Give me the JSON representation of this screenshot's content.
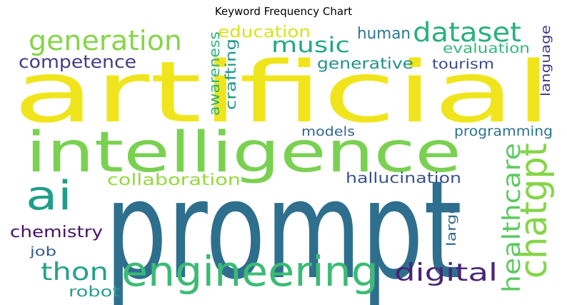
{
  "chart_data": {
    "type": "wordcloud",
    "title": "Keyword Frequency Chart",
    "colormap": "viridis",
    "background": "#ffffff",
    "words": [
      {
        "text": "prompt",
        "color": "#2e6f8e"
      },
      {
        "text": "artificial",
        "color": "#f0e51c"
      },
      {
        "text": "intelligence",
        "color": "#7ad151"
      },
      {
        "text": "engineering",
        "color": "#3bbb75"
      },
      {
        "text": "chatgpt",
        "color": "#86d549"
      },
      {
        "text": "ai",
        "color": "#1f9e89"
      },
      {
        "text": "generation",
        "color": "#86d549"
      },
      {
        "text": "dataset",
        "color": "#2ab07f"
      },
      {
        "text": "music",
        "color": "#22a884"
      },
      {
        "text": "digital",
        "color": "#482576"
      },
      {
        "text": "thon",
        "color": "#25a18e"
      },
      {
        "text": "healthcare",
        "color": "#5ec962"
      },
      {
        "text": "competence",
        "color": "#433e85"
      },
      {
        "text": "education",
        "color": "#d8e219"
      },
      {
        "text": "human",
        "color": "#2a788e"
      },
      {
        "text": "evaluation",
        "color": "#35b779"
      },
      {
        "text": "generative",
        "color": "#21918c"
      },
      {
        "text": "tourism",
        "color": "#3e4989"
      },
      {
        "text": "language",
        "color": "#443a83"
      },
      {
        "text": "awareness",
        "color": "#2db27d"
      },
      {
        "text": "crafting",
        "color": "#1f988b"
      },
      {
        "text": "collaboration",
        "color": "#95d840"
      },
      {
        "text": "hallucination",
        "color": "#3b528b"
      },
      {
        "text": "programming",
        "color": "#2c728e"
      },
      {
        "text": "models",
        "color": "#31688e"
      },
      {
        "text": "chemistry",
        "color": "#471164"
      },
      {
        "text": "job",
        "color": "#38598c"
      },
      {
        "text": "robot",
        "color": "#2a9d8f"
      },
      {
        "text": "large",
        "color": "#31688e"
      }
    ]
  }
}
